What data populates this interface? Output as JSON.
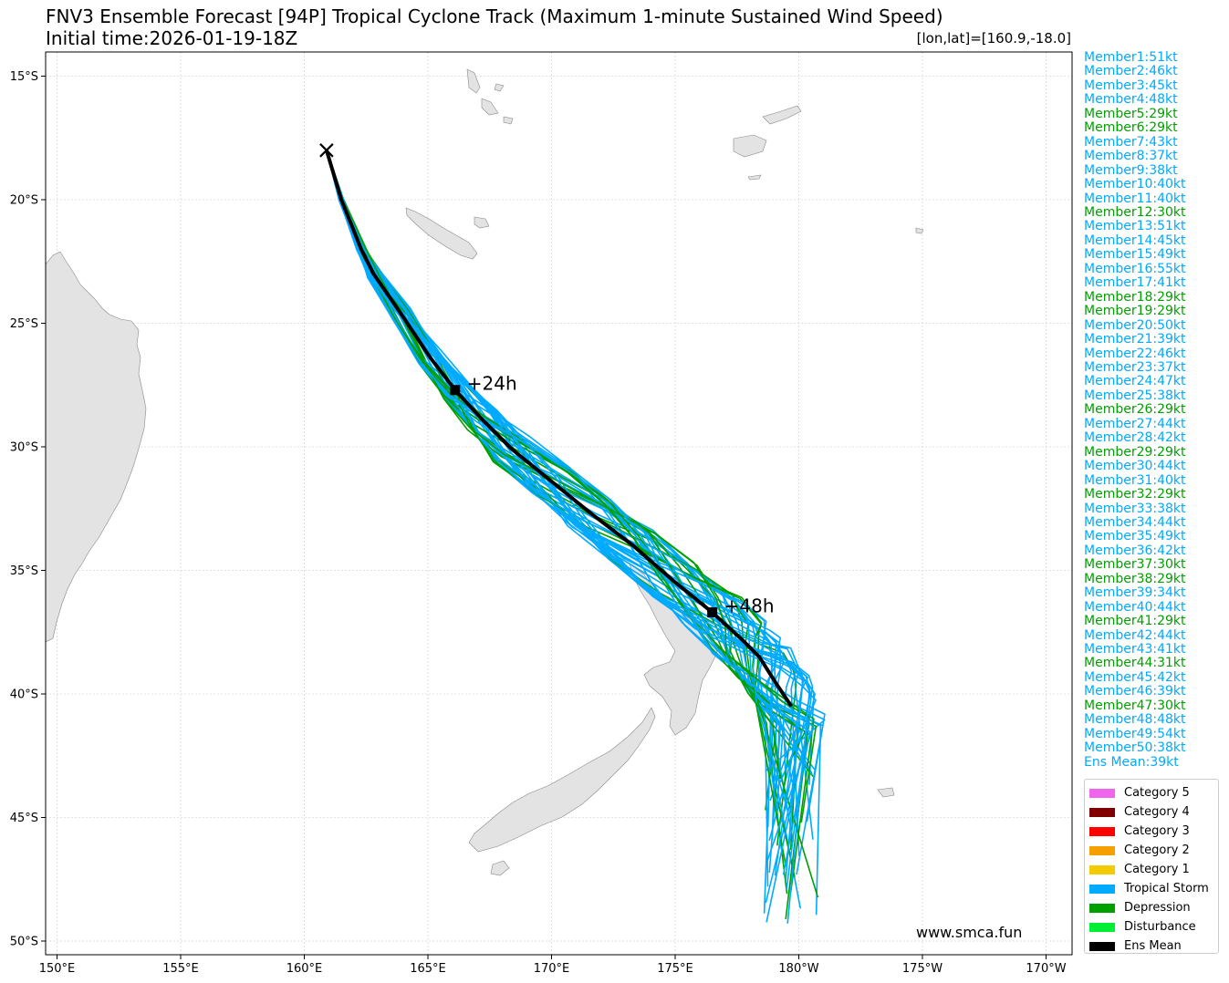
{
  "title_line1": "FNV3 Ensemble Forecast [94P] Tropical Cyclone Track (Maximum 1-minute Sustained Wind Speed)",
  "title_line2": "Initial time:2026-01-19-18Z",
  "coord_readout": "[lon,lat]=[160.9,-18.0]",
  "watermark": "www.smca.fun",
  "colors": {
    "tropical_storm": "#00aaff",
    "depression": "#00a000",
    "ens_mean": "#000000",
    "land": "#e3e3e3",
    "grid": "#d8d8d8"
  },
  "axes": {
    "lon_ticks": [
      "150°E",
      "155°E",
      "160°E",
      "165°E",
      "170°E",
      "175°E",
      "180°W",
      "175°W",
      "170°W"
    ],
    "lat_ticks": [
      "15°S",
      "20°S",
      "25°S",
      "30°S",
      "35°S",
      "40°S",
      "45°S",
      "50°S"
    ]
  },
  "members": [
    {
      "label": "Member1:51kt",
      "cat": "ts"
    },
    {
      "label": "Member2:46kt",
      "cat": "ts"
    },
    {
      "label": "Member3:45kt",
      "cat": "ts"
    },
    {
      "label": "Member4:48kt",
      "cat": "ts"
    },
    {
      "label": "Member5:29kt",
      "cat": "dep"
    },
    {
      "label": "Member6:29kt",
      "cat": "dep"
    },
    {
      "label": "Member7:43kt",
      "cat": "ts"
    },
    {
      "label": "Member8:37kt",
      "cat": "ts"
    },
    {
      "label": "Member9:38kt",
      "cat": "ts"
    },
    {
      "label": "Member10:40kt",
      "cat": "ts"
    },
    {
      "label": "Member11:40kt",
      "cat": "ts"
    },
    {
      "label": "Member12:30kt",
      "cat": "dep"
    },
    {
      "label": "Member13:51kt",
      "cat": "ts"
    },
    {
      "label": "Member14:45kt",
      "cat": "ts"
    },
    {
      "label": "Member15:49kt",
      "cat": "ts"
    },
    {
      "label": "Member16:55kt",
      "cat": "ts"
    },
    {
      "label": "Member17:41kt",
      "cat": "ts"
    },
    {
      "label": "Member18:29kt",
      "cat": "dep"
    },
    {
      "label": "Member19:29kt",
      "cat": "dep"
    },
    {
      "label": "Member20:50kt",
      "cat": "ts"
    },
    {
      "label": "Member21:39kt",
      "cat": "ts"
    },
    {
      "label": "Member22:46kt",
      "cat": "ts"
    },
    {
      "label": "Member23:37kt",
      "cat": "ts"
    },
    {
      "label": "Member24:47kt",
      "cat": "ts"
    },
    {
      "label": "Member25:38kt",
      "cat": "ts"
    },
    {
      "label": "Member26:29kt",
      "cat": "dep"
    },
    {
      "label": "Member27:44kt",
      "cat": "ts"
    },
    {
      "label": "Member28:42kt",
      "cat": "ts"
    },
    {
      "label": "Member29:29kt",
      "cat": "dep"
    },
    {
      "label": "Member30:44kt",
      "cat": "ts"
    },
    {
      "label": "Member31:40kt",
      "cat": "ts"
    },
    {
      "label": "Member32:29kt",
      "cat": "dep"
    },
    {
      "label": "Member33:38kt",
      "cat": "ts"
    },
    {
      "label": "Member34:44kt",
      "cat": "ts"
    },
    {
      "label": "Member35:49kt",
      "cat": "ts"
    },
    {
      "label": "Member36:42kt",
      "cat": "ts"
    },
    {
      "label": "Member37:30kt",
      "cat": "dep"
    },
    {
      "label": "Member38:29kt",
      "cat": "dep"
    },
    {
      "label": "Member39:34kt",
      "cat": "ts"
    },
    {
      "label": "Member40:44kt",
      "cat": "ts"
    },
    {
      "label": "Member41:29kt",
      "cat": "dep"
    },
    {
      "label": "Member42:44kt",
      "cat": "ts"
    },
    {
      "label": "Member43:41kt",
      "cat": "ts"
    },
    {
      "label": "Member44:31kt",
      "cat": "dep"
    },
    {
      "label": "Member45:42kt",
      "cat": "ts"
    },
    {
      "label": "Member46:39kt",
      "cat": "ts"
    },
    {
      "label": "Member47:30kt",
      "cat": "dep"
    },
    {
      "label": "Member48:48kt",
      "cat": "ts"
    },
    {
      "label": "Member49:54kt",
      "cat": "ts"
    },
    {
      "label": "Member50:38kt",
      "cat": "ts"
    },
    {
      "label": "Ens Mean:39kt",
      "cat": "ts"
    }
  ],
  "legend": [
    {
      "label": "Category 5",
      "color": "#ee66ee"
    },
    {
      "label": "Category 4",
      "color": "#800000"
    },
    {
      "label": "Category 3",
      "color": "#ff0000"
    },
    {
      "label": "Category 2",
      "color": "#f5a000"
    },
    {
      "label": "Category 1",
      "color": "#f2cc00"
    },
    {
      "label": "Tropical Storm",
      "color": "#00aaff"
    },
    {
      "label": "Depression",
      "color": "#00a000"
    },
    {
      "label": "Disturbance",
      "color": "#00ee33"
    },
    {
      "label": "Ens Mean",
      "color": "#000000"
    }
  ],
  "track": {
    "start": {
      "lon": 160.9,
      "lat": -18.0
    },
    "ens_mean": [
      [
        160.9,
        -18.0
      ],
      [
        161.5,
        -20.0
      ],
      [
        162.3,
        -22.0
      ],
      [
        162.8,
        -23.0
      ],
      [
        163.9,
        -24.6
      ],
      [
        165.1,
        -26.4
      ],
      [
        166.1,
        -27.7
      ],
      [
        167.2,
        -28.9
      ],
      [
        168.4,
        -30.1
      ],
      [
        170.0,
        -31.4
      ],
      [
        171.6,
        -32.7
      ],
      [
        173.3,
        -34.0
      ],
      [
        174.9,
        -35.4
      ],
      [
        176.5,
        -36.7
      ],
      [
        177.7,
        -37.8
      ],
      [
        178.4,
        -38.5
      ],
      [
        179.1,
        -39.6
      ],
      [
        179.7,
        -40.5
      ]
    ],
    "markers": [
      {
        "label": "+24h",
        "lon": 166.1,
        "lat": -27.7
      },
      {
        "label": "+48h",
        "lon": 176.5,
        "lat": -36.7
      }
    ]
  }
}
